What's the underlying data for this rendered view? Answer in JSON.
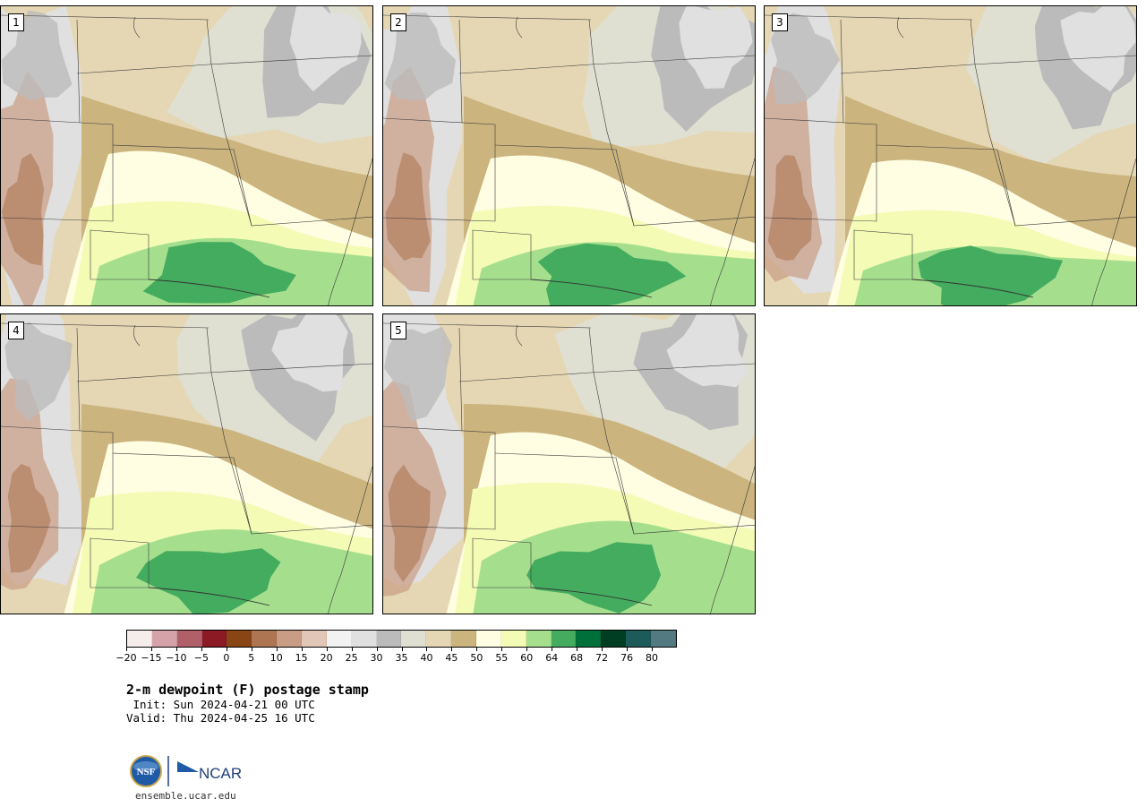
{
  "panels": [
    {
      "label": "1",
      "variant": 0
    },
    {
      "label": "2",
      "variant": 1
    },
    {
      "label": "3",
      "variant": 2
    },
    {
      "label": "4",
      "variant": 3
    },
    {
      "label": "5",
      "variant": 4
    }
  ],
  "colorbar": {
    "colors": [
      "#f5ecec",
      "#d6a2aa",
      "#b1606a",
      "#8b1a24",
      "#8a4514",
      "#ad7552",
      "#c99d85",
      "#e2c6b7",
      "#f2f2f2",
      "#e0e0e0",
      "#bbbbbb",
      "#dfdfd2",
      "#e5d7b3",
      "#cbb47e",
      "#fffde2",
      "#f4fbb5",
      "#a5df8e",
      "#44ac5e",
      "#00703a",
      "#003e24",
      "#1d5a5a",
      "#537a80"
    ],
    "tick_labels": [
      "−20",
      "−15",
      "−10",
      "−5",
      "0",
      "5",
      "10",
      "15",
      "20",
      "25",
      "30",
      "35",
      "40",
      "45",
      "50",
      "55",
      "60",
      "64",
      "68",
      "72",
      "76",
      "80"
    ]
  },
  "title": "2-m dewpoint (F) postage stamp",
  "init": " Init: Sun 2024-04-21 00 UTC",
  "valid": "Valid: Thu 2024-04-25 16 UTC",
  "logo": {
    "nsf_text": "NSF",
    "ncar_text": "NCAR"
  },
  "url": "ensemble.ucar.edu"
}
